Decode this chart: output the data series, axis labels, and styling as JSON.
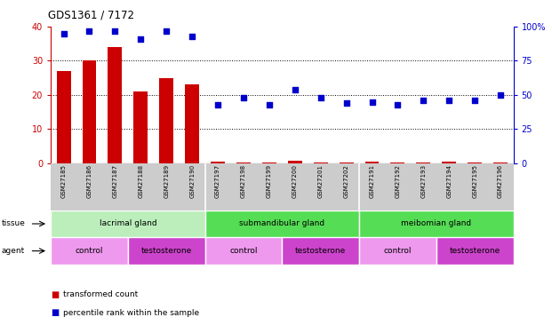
{
  "title": "GDS1361 / 7172",
  "samples": [
    "GSM27185",
    "GSM27186",
    "GSM27187",
    "GSM27188",
    "GSM27189",
    "GSM27190",
    "GSM27197",
    "GSM27198",
    "GSM27199",
    "GSM27200",
    "GSM27201",
    "GSM27202",
    "GSM27191",
    "GSM27192",
    "GSM27193",
    "GSM27194",
    "GSM27195",
    "GSM27196"
  ],
  "red_values": [
    27,
    30,
    34,
    21,
    25,
    23,
    0.5,
    0.2,
    0.3,
    0.7,
    0.3,
    0.3,
    0.5,
    0.3,
    0.3,
    0.4,
    0.3,
    0.3
  ],
  "blue_values": [
    95,
    97,
    97,
    91,
    97,
    93,
    43,
    48,
    43,
    54,
    48,
    44,
    45,
    43,
    46,
    46,
    46,
    50
  ],
  "ylim_left": [
    0,
    40
  ],
  "ylim_right": [
    0,
    100
  ],
  "yticks_left": [
    0,
    10,
    20,
    30,
    40
  ],
  "yticks_right": [
    0,
    25,
    50,
    75,
    100
  ],
  "bar_color": "#cc0000",
  "dot_color": "#0000cc",
  "background_color": "#ffffff",
  "sample_bg_color": "#cccccc",
  "tissue_groups": [
    {
      "label": "lacrimal gland",
      "start": 0,
      "end": 6,
      "color": "#bbeebb"
    },
    {
      "label": "submandibular gland",
      "start": 6,
      "end": 12,
      "color": "#55dd55"
    },
    {
      "label": "meibomian gland",
      "start": 12,
      "end": 18,
      "color": "#55dd55"
    }
  ],
  "agent_groups": [
    {
      "label": "control",
      "start": 0,
      "end": 3,
      "color": "#ee99ee"
    },
    {
      "label": "testosterone",
      "start": 3,
      "end": 6,
      "color": "#cc44cc"
    },
    {
      "label": "control",
      "start": 6,
      "end": 9,
      "color": "#ee99ee"
    },
    {
      "label": "testosterone",
      "start": 9,
      "end": 12,
      "color": "#cc44cc"
    },
    {
      "label": "control",
      "start": 12,
      "end": 15,
      "color": "#ee99ee"
    },
    {
      "label": "testosterone",
      "start": 15,
      "end": 18,
      "color": "#cc44cc"
    }
  ]
}
